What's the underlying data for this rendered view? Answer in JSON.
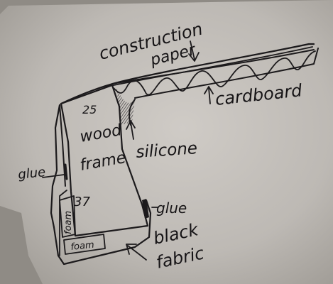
{
  "labels": {
    "construction_line1": "construction",
    "construction_line2": "paper",
    "cardboard": "cardboard",
    "silicone": "silicone",
    "wood_line1": "wood",
    "wood_line2": "frame",
    "num_top": "25",
    "num_mid": "37",
    "glue_left": "glue",
    "glue_right": "glue",
    "foam_vertical": "foam",
    "foam_horizontal": "foam",
    "black_line1": "black",
    "black_line2": "fabric"
  },
  "colors": {
    "paper_light": "#cfcbc6",
    "paper_mid": "#b5b1ab",
    "paper_dark": "#8f8b85",
    "ink": "#1c1a1c"
  }
}
